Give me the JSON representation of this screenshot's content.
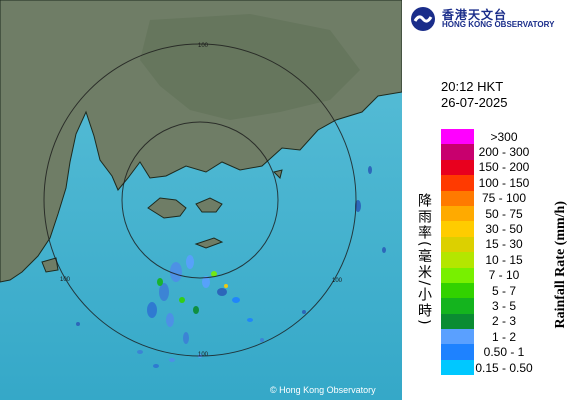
{
  "logo": {
    "name_zh": "香港天文台",
    "name_en": "HONG KONG OBSERVATORY"
  },
  "time": "20:12 HKT",
  "date": "26-07-2025",
  "map": {
    "range_labels": [
      "100",
      "100",
      "100",
      "100"
    ],
    "copyright": "© Hong Kong Observatory"
  },
  "legend": {
    "title_zh": "降雨率(毫米/小時)",
    "title_en": "Rainfall Rate (mm/h)",
    "items": [
      {
        "label": ">300",
        "color": "#ff00ff"
      },
      {
        "label": "200 - 300",
        "color": "#c8006e"
      },
      {
        "label": "150 - 200",
        "color": "#e8001e"
      },
      {
        "label": "100 - 150",
        "color": "#ff3a00"
      },
      {
        "label": "75 - 100",
        "color": "#ff7a00"
      },
      {
        "label": "50 - 75",
        "color": "#ffaa00"
      },
      {
        "label": "30 - 50",
        "color": "#ffcc00"
      },
      {
        "label": "15 - 30",
        "color": "#dcd000"
      },
      {
        "label": "10 - 15",
        "color": "#b4e600"
      },
      {
        "label": "7 - 10",
        "color": "#78f000"
      },
      {
        "label": "5 - 7",
        "color": "#32d200"
      },
      {
        "label": "3 - 5",
        "color": "#14b41e"
      },
      {
        "label": "2 - 3",
        "color": "#0a8c32"
      },
      {
        "label": "1 - 2",
        "color": "#5aa0ff"
      },
      {
        "label": "0.50 - 1",
        "color": "#1e82ff"
      },
      {
        "label": "0.15 - 0.50",
        "color": "#00c8ff"
      }
    ]
  }
}
